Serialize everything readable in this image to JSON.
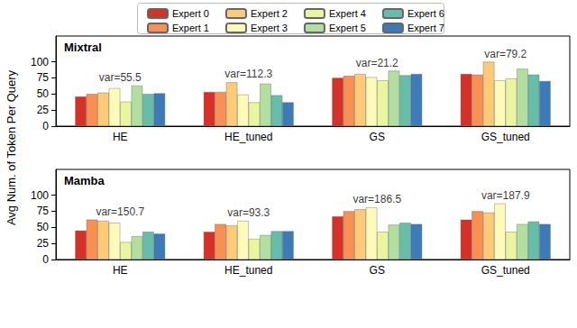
{
  "chart_data": [
    {
      "type": "bar",
      "title": "Mixtral",
      "ylabel": "Avg Num. of Token Per Query",
      "legend": "top",
      "grid": false,
      "categories": [
        "HE",
        "HE_tuned",
        "GS",
        "GS_tuned"
      ],
      "series": [
        {
          "name": "Expert 0",
          "color": "#d73027",
          "values": [
            46,
            53,
            75,
            81
          ]
        },
        {
          "name": "Expert 1",
          "color": "#f88f53",
          "values": [
            50,
            53,
            78,
            80
          ]
        },
        {
          "name": "Expert 2",
          "color": "#fdca78",
          "values": [
            52,
            68,
            81,
            100
          ]
        },
        {
          "name": "Expert 3",
          "color": "#fefbba",
          "values": [
            59,
            49,
            76,
            71
          ]
        },
        {
          "name": "Expert 4",
          "color": "#eaf69f",
          "values": [
            38,
            37,
            71,
            74
          ]
        },
        {
          "name": "Expert 5",
          "color": "#b2dfa0",
          "values": [
            63,
            66,
            86,
            89
          ]
        },
        {
          "name": "Expert 6",
          "color": "#66bda8",
          "values": [
            50,
            48,
            79,
            80
          ]
        },
        {
          "name": "Expert 7",
          "color": "#3c7ab8",
          "values": [
            51,
            37,
            81,
            70
          ]
        }
      ],
      "ylim": [
        0,
        140
      ],
      "yticks": [
        0,
        25,
        50,
        75,
        100
      ],
      "annotations": [
        {
          "category": "HE",
          "text": "var=55.5"
        },
        {
          "category": "HE_tuned",
          "text": "var=112.3"
        },
        {
          "category": "GS",
          "text": "var=21.2"
        },
        {
          "category": "GS_tuned",
          "text": "var=79.2"
        }
      ]
    },
    {
      "type": "bar",
      "title": "Mamba",
      "grid": false,
      "categories": [
        "HE",
        "HE_tuned",
        "GS",
        "GS_tuned"
      ],
      "series": [
        {
          "name": "Expert 0",
          "color": "#d73027",
          "values": [
            45,
            43,
            67,
            62
          ]
        },
        {
          "name": "Expert 1",
          "color": "#f88f53",
          "values": [
            62,
            55,
            75,
            75
          ]
        },
        {
          "name": "Expert 2",
          "color": "#fdca78",
          "values": [
            60,
            53,
            78,
            73
          ]
        },
        {
          "name": "Expert 3",
          "color": "#fefbba",
          "values": [
            57,
            60,
            81,
            87
          ]
        },
        {
          "name": "Expert 4",
          "color": "#eaf69f",
          "values": [
            27,
            32,
            43,
            43
          ]
        },
        {
          "name": "Expert 5",
          "color": "#b2dfa0",
          "values": [
            36,
            38,
            54,
            55
          ]
        },
        {
          "name": "Expert 6",
          "color": "#66bda8",
          "values": [
            43,
            44,
            57,
            59
          ]
        },
        {
          "name": "Expert 7",
          "color": "#3c7ab8",
          "values": [
            40,
            44,
            55,
            55
          ]
        }
      ],
      "ylim": [
        0,
        140
      ],
      "yticks": [
        0,
        25,
        50,
        75,
        100
      ],
      "annotations": [
        {
          "category": "HE",
          "text": "var=150.7"
        },
        {
          "category": "HE_tuned",
          "text": "var=93.3"
        },
        {
          "category": "GS",
          "text": "var=186.5"
        },
        {
          "category": "GS_tuned",
          "text": "var=187.9"
        }
      ]
    }
  ]
}
